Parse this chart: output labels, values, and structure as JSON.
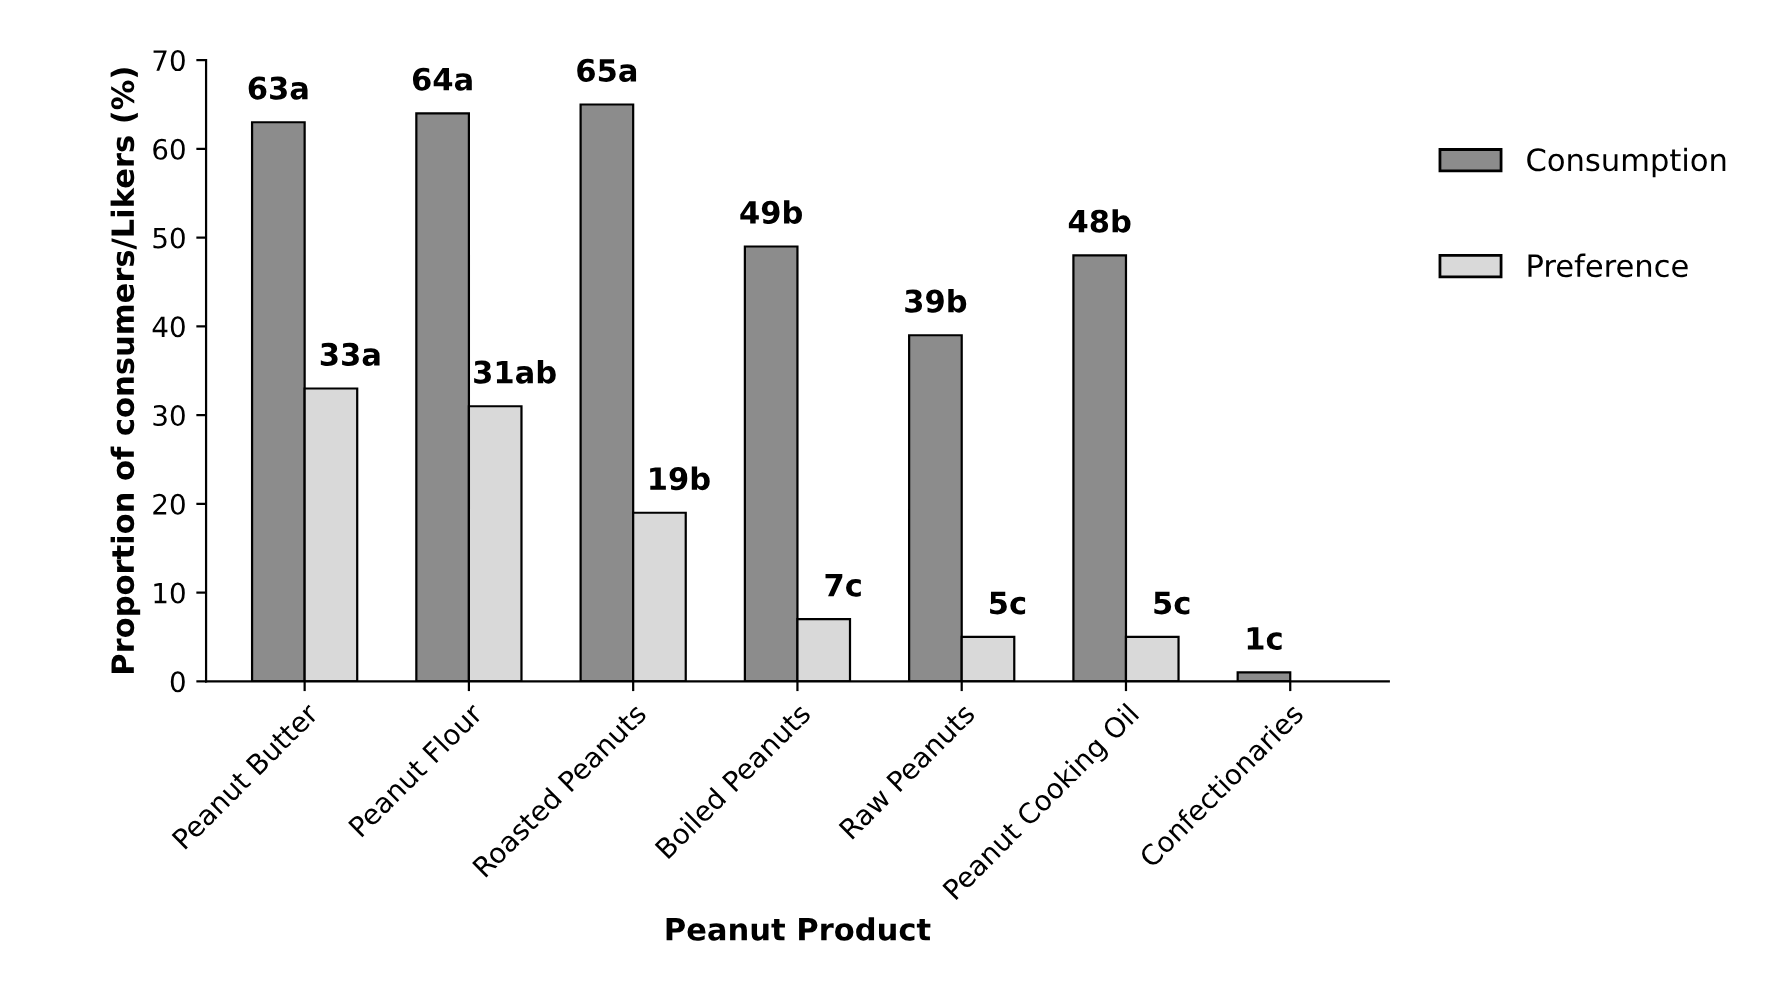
{
  "chart_data": {
    "type": "bar",
    "xlabel": "Peanut Product",
    "ylabel": "Proportion of consumers/Likers (%)",
    "categories": [
      "Peanut Butter",
      "Peanut Flour",
      "Roasted Peanuts",
      "Boiled Peanuts",
      "Raw Peanuts",
      "Peanut Cooking Oil",
      "Confectionaries"
    ],
    "series": [
      {
        "name": "Consumption",
        "color": "#8c8c8c",
        "values": [
          63,
          64,
          65,
          49,
          39,
          48,
          1
        ],
        "value_labels": [
          "63a",
          "64a",
          "65a",
          "49b",
          "39b",
          "48b",
          "1c"
        ]
      },
      {
        "name": "Preference",
        "color": "#d9d9d9",
        "values": [
          33,
          31,
          19,
          7,
          5,
          5,
          null
        ],
        "value_labels": [
          "33a",
          "31ab",
          "19b",
          "7c",
          "5c",
          "5c",
          null
        ]
      }
    ],
    "ylim": [
      0,
      70
    ],
    "yticks": [
      0,
      10,
      20,
      30,
      40,
      50,
      60,
      70
    ],
    "grid": false,
    "legend": "right"
  }
}
